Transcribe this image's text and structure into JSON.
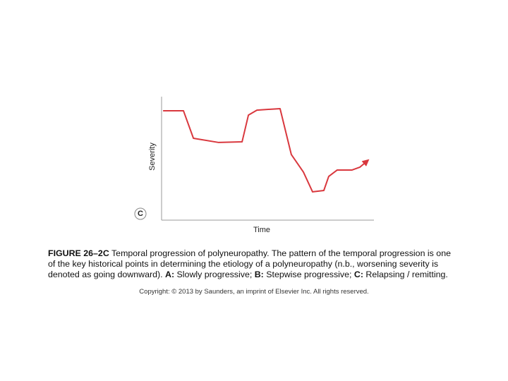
{
  "chart_data": {
    "type": "line",
    "ylabel": "Severity",
    "xlabel": "Time",
    "panel_label": "C",
    "xlim": [
      0,
      100
    ],
    "ylim": [
      0,
      100
    ],
    "series": [
      {
        "color": "#d9383e",
        "x": [
          0.7,
          10.3,
          15,
          26.9,
          37.9,
          40.9,
          44.9,
          55.8,
          61.1,
          66.8,
          71.1,
          76.4,
          78.7,
          82.7,
          89.7,
          93.4,
          97.3
        ],
        "values": [
          88.6,
          88.6,
          66.3,
          62.9,
          63.4,
          85.1,
          89.1,
          90.3,
          53.1,
          38.9,
          22.9,
          24,
          35.4,
          40.6,
          40.6,
          42.9,
          48.6
        ]
      }
    ]
  },
  "caption": [
    {
      "text": "FIGURE 26–2C",
      "bold": true
    },
    {
      "text": " Temporal progression of polyneuropathy. The pattern of the temporal progression is one of the key historical points in determining the etiology of a polyneuropathy (n.b., worsening severity is denoted as going downward). ",
      "bold": false
    },
    {
      "text": "A:",
      "bold": true
    },
    {
      "text": " Slowly progressive; ",
      "bold": false
    },
    {
      "text": "B:",
      "bold": true
    },
    {
      "text": " Stepwise progressive; ",
      "bold": false
    },
    {
      "text": "C:",
      "bold": true
    },
    {
      "text": " Relapsing / remitting.",
      "bold": false
    }
  ],
  "copyright": "Copyright: © 2013 by Saunders, an imprint of Elsevier Inc. All rights reserved."
}
